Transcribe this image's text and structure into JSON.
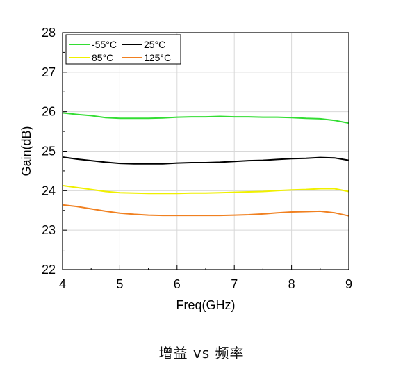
{
  "chart_data": {
    "type": "line",
    "xlabel": "Freq(GHz)",
    "ylabel": "Gain(dB)",
    "xlim": [
      4,
      9
    ],
    "ylim": [
      22,
      28
    ],
    "xticks": [
      4,
      5,
      6,
      7,
      8,
      9
    ],
    "yticks": [
      22,
      23,
      24,
      25,
      26,
      27,
      28
    ],
    "grid": true,
    "legend_position": "top-left",
    "x": [
      4.0,
      4.25,
      4.5,
      4.75,
      5.0,
      5.25,
      5.5,
      5.75,
      6.0,
      6.25,
      6.5,
      6.75,
      7.0,
      7.25,
      7.5,
      7.75,
      8.0,
      8.25,
      8.5,
      8.75,
      9.0
    ],
    "series": [
      {
        "name": "-55°C",
        "color": "#33dd33",
        "values": [
          25.97,
          25.93,
          25.9,
          25.85,
          25.83,
          25.83,
          25.83,
          25.84,
          25.86,
          25.87,
          25.87,
          25.88,
          25.87,
          25.87,
          25.86,
          25.86,
          25.85,
          25.83,
          25.82,
          25.78,
          25.71
        ]
      },
      {
        "name": "25°C",
        "color": "#000000",
        "values": [
          24.85,
          24.8,
          24.76,
          24.72,
          24.69,
          24.68,
          24.68,
          24.68,
          24.7,
          24.71,
          24.71,
          24.72,
          24.74,
          24.76,
          24.77,
          24.79,
          24.81,
          24.82,
          24.84,
          24.83,
          24.77
        ]
      },
      {
        "name": "85°C",
        "color": "#f0f000",
        "values": [
          24.13,
          24.08,
          24.03,
          23.98,
          23.95,
          23.94,
          23.93,
          23.93,
          23.93,
          23.94,
          23.94,
          23.95,
          23.96,
          23.97,
          23.98,
          24.0,
          24.02,
          24.03,
          24.05,
          24.05,
          23.98
        ]
      },
      {
        "name": "125°C",
        "color": "#f08020",
        "values": [
          23.64,
          23.6,
          23.54,
          23.48,
          23.43,
          23.4,
          23.38,
          23.37,
          23.37,
          23.37,
          23.37,
          23.37,
          23.38,
          23.39,
          23.41,
          23.44,
          23.46,
          23.47,
          23.48,
          23.44,
          23.36
        ]
      }
    ]
  },
  "caption": "增益 vs 频率"
}
